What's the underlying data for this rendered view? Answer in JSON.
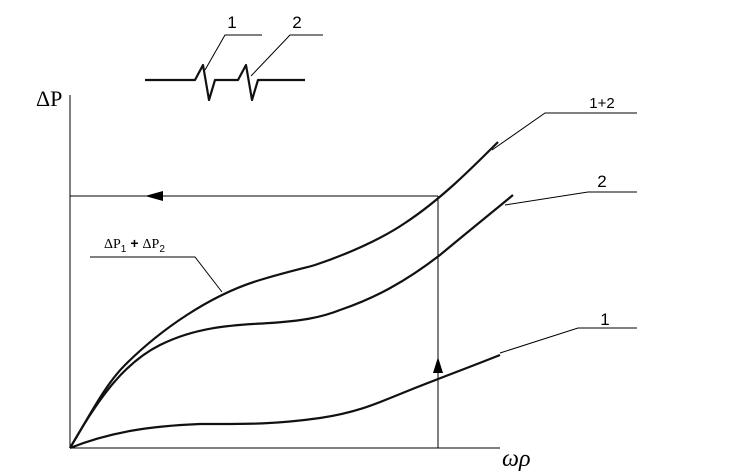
{
  "resistor_labels": [
    "1",
    "2"
  ],
  "axes": {
    "y_label": "ΔP",
    "x_label": "ωρ"
  },
  "curve_labels": [
    "1+2",
    "2",
    "1"
  ],
  "annotation": {
    "term1": "ΔP",
    "sub1": "1",
    "op": "+",
    "term2": "ΔP",
    "sub2": "2"
  }
}
